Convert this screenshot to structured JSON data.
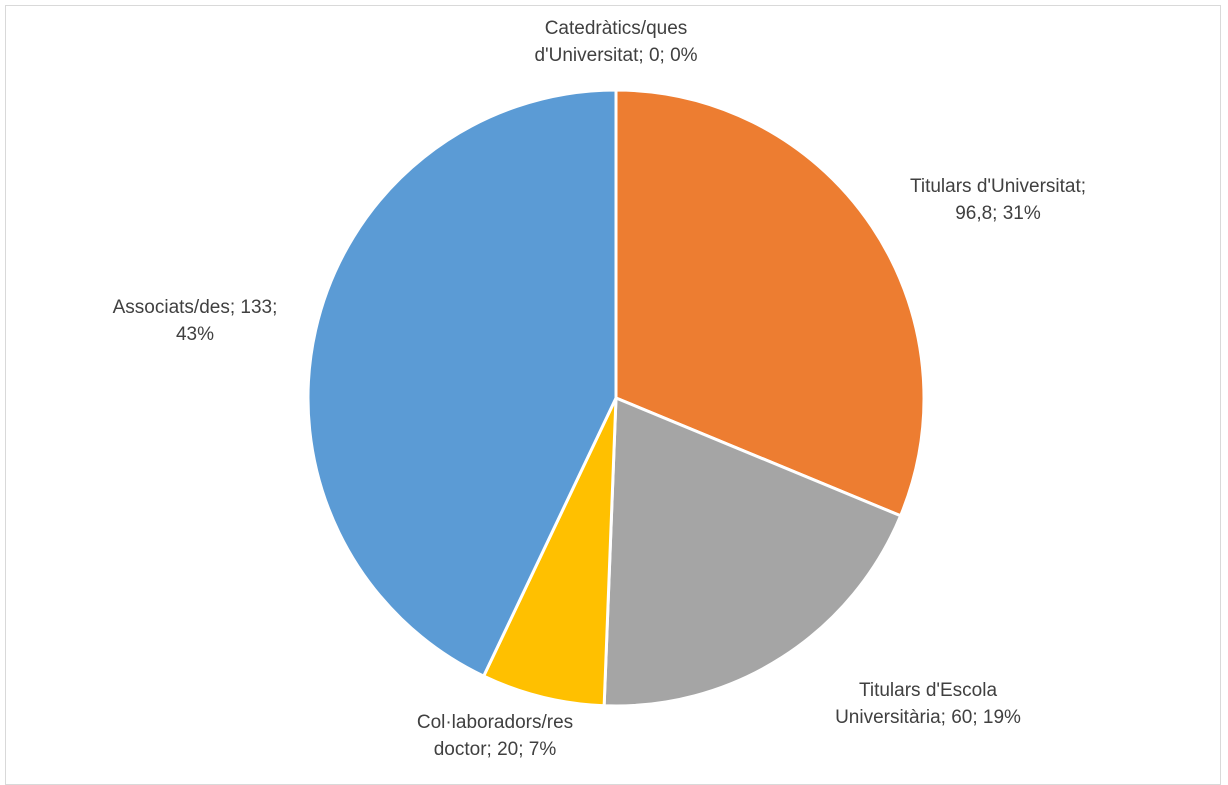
{
  "chart_data": {
    "type": "pie",
    "start_angle_deg": 0,
    "direction": "clockwise",
    "slice_border_color": "#ffffff",
    "slices": [
      {
        "label": "Catedràtics/ques d'Universitat",
        "value": 0,
        "percent": "0%",
        "color": "#5b9bd5",
        "label_lines": [
          "Catedràtics/ques",
          "d'Universitat; 0; 0%"
        ]
      },
      {
        "label": "Titulars d'Universitat",
        "value": 96.8,
        "percent": "31%",
        "color": "#ed7d31",
        "label_lines": [
          "Titulars d'Universitat;",
          "96,8; 31%"
        ]
      },
      {
        "label": "Titulars d'Escola Universitària",
        "value": 60,
        "percent": "19%",
        "color": "#a5a5a5",
        "label_lines": [
          "Titulars d'Escola",
          "Universitària; 60; 19%"
        ]
      },
      {
        "label": "Col·laboradors/res doctor",
        "value": 20,
        "percent": "7%",
        "color": "#ffc000",
        "label_lines": [
          "Col·laboradors/res",
          "doctor; 20; 7%"
        ]
      },
      {
        "label": "Associats/des",
        "value": 133,
        "percent": "43%",
        "color": "#5b9bd5",
        "label_lines": [
          "Associats/des; 133;",
          "43%"
        ]
      }
    ]
  }
}
